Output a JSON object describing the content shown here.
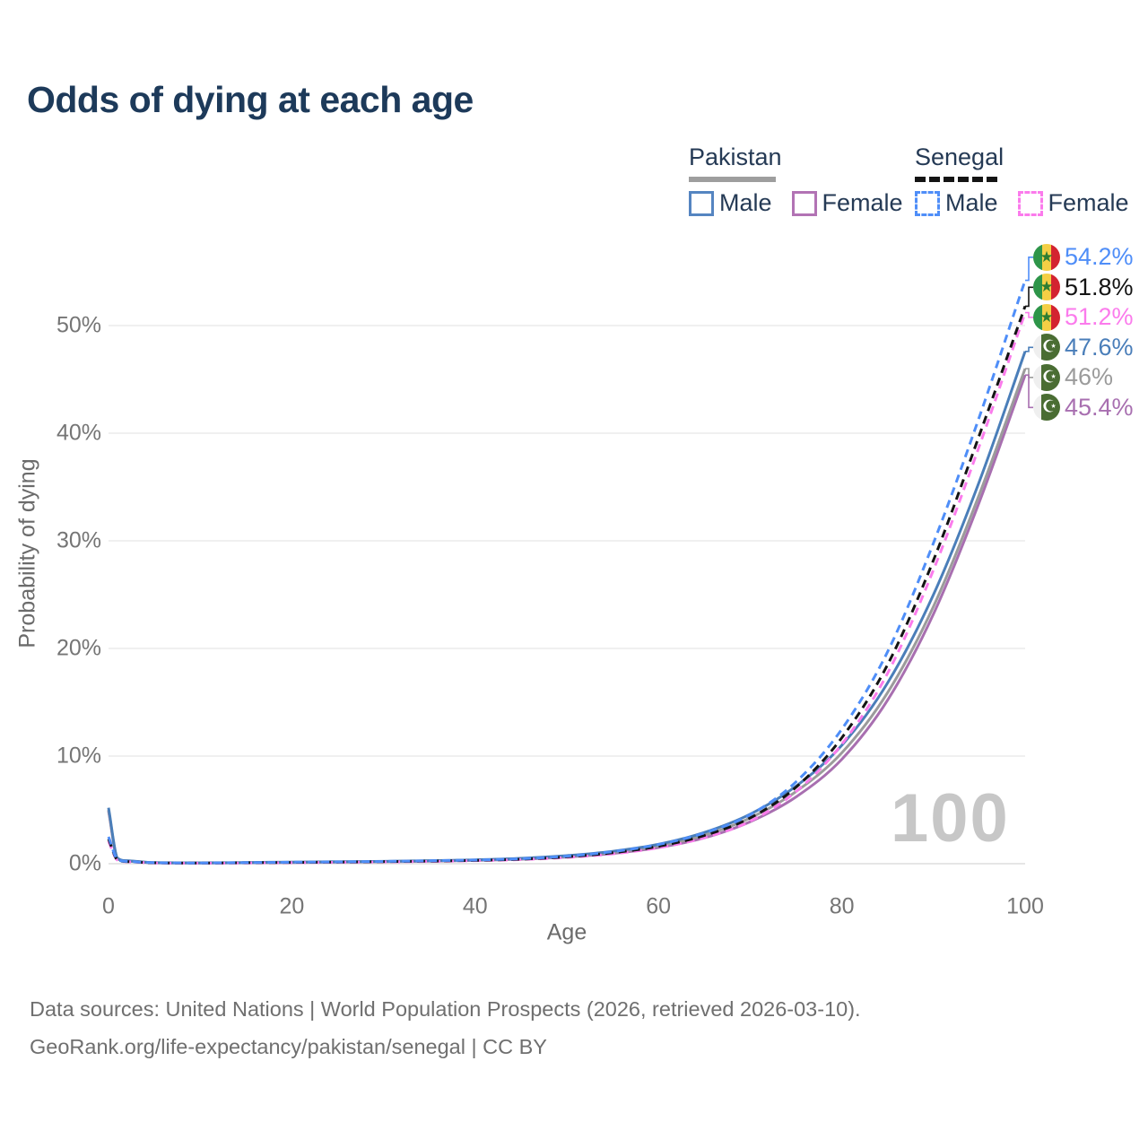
{
  "title": "Odds of dying at each age",
  "legend": {
    "groups": [
      {
        "label": "Pakistan",
        "line_style": "solid",
        "line_color": "#9e9e9e",
        "items": [
          {
            "label": "Male",
            "box_color": "#5585c1",
            "box_style": "solid"
          },
          {
            "label": "Female",
            "box_color": "#b273b4",
            "box_style": "solid"
          }
        ]
      },
      {
        "label": "Senegal",
        "line_style": "dashed",
        "line_color": "#141414",
        "items": [
          {
            "label": "Male",
            "box_color": "#4f8ef8",
            "box_style": "dashed"
          },
          {
            "label": "Female",
            "box_color": "#fb7bec",
            "box_style": "dashed"
          }
        ]
      }
    ]
  },
  "chart_data": {
    "type": "line",
    "title": "Odds of dying at each age",
    "xlabel": "Age",
    "ylabel": "Probability of dying",
    "units": "percent",
    "xlim": [
      0,
      100
    ],
    "ylim": [
      0,
      56
    ],
    "grid": true,
    "legend_position": "top-right",
    "watermark": "100",
    "x_ticks": [
      0,
      20,
      40,
      60,
      80,
      100
    ],
    "y_ticks": [
      {
        "value": 0,
        "label": "0%"
      },
      {
        "value": 10,
        "label": "10%"
      },
      {
        "value": 20,
        "label": "20%"
      },
      {
        "value": 30,
        "label": "30%"
      },
      {
        "value": 40,
        "label": "40%"
      },
      {
        "value": 50,
        "label": "50%"
      }
    ],
    "x": [
      0,
      1,
      2,
      5,
      10,
      15,
      20,
      25,
      30,
      35,
      40,
      45,
      50,
      55,
      60,
      65,
      70,
      75,
      80,
      85,
      90,
      95,
      100
    ],
    "series": [
      {
        "id": "pakistan-female",
        "name": "Pakistan Female",
        "style": "solid",
        "color": "#a86fb0",
        "flag": "pakistan",
        "end_label": "45.4%",
        "values": [
          4.9,
          0.43,
          0.24,
          0.08,
          0.06,
          0.08,
          0.11,
          0.14,
          0.18,
          0.23,
          0.3,
          0.42,
          0.62,
          0.95,
          1.5,
          2.4,
          3.9,
          6.2,
          9.7,
          15.2,
          23.2,
          33.6,
          45.4
        ]
      },
      {
        "id": "pakistan-all",
        "name": "Pakistan",
        "style": "solid",
        "color": "#9b9b9b",
        "flag": "pakistan",
        "end_label": "46%",
        "values": [
          5.0,
          0.46,
          0.26,
          0.09,
          0.07,
          0.09,
          0.13,
          0.16,
          0.2,
          0.26,
          0.33,
          0.46,
          0.68,
          1.05,
          1.65,
          2.65,
          4.25,
          6.7,
          10.3,
          15.9,
          23.9,
          34.3,
          46.0
        ]
      },
      {
        "id": "pakistan-male",
        "name": "Pakistan Male",
        "style": "solid",
        "color": "#4a7eb9",
        "flag": "pakistan",
        "end_label": "47.6%",
        "values": [
          5.2,
          0.5,
          0.28,
          0.1,
          0.08,
          0.11,
          0.15,
          0.18,
          0.22,
          0.28,
          0.36,
          0.5,
          0.75,
          1.15,
          1.8,
          2.9,
          4.6,
          7.2,
          11.0,
          16.8,
          25.0,
          35.5,
          47.6
        ]
      },
      {
        "id": "senegal-female",
        "name": "Senegal Female",
        "style": "dashed",
        "color": "#fb7bec",
        "flag": "senegal",
        "end_label": "51.2%",
        "values": [
          2.1,
          0.31,
          0.18,
          0.07,
          0.05,
          0.07,
          0.1,
          0.13,
          0.17,
          0.21,
          0.28,
          0.38,
          0.58,
          0.92,
          1.48,
          2.42,
          3.95,
          6.7,
          11.1,
          17.7,
          27.3,
          38.8,
          51.2
        ]
      },
      {
        "id": "senegal-all",
        "name": "Senegal",
        "style": "dashed",
        "color": "#141414",
        "flag": "senegal",
        "end_label": "51.8%",
        "values": [
          2.3,
          0.34,
          0.2,
          0.08,
          0.06,
          0.09,
          0.12,
          0.15,
          0.19,
          0.24,
          0.31,
          0.42,
          0.64,
          1.02,
          1.62,
          2.62,
          4.25,
          7.1,
          11.7,
          18.5,
          28.2,
          39.8,
          51.8
        ]
      },
      {
        "id": "senegal-male",
        "name": "Senegal Male",
        "style": "dashed",
        "color": "#4f8ef8",
        "flag": "senegal",
        "end_label": "54.2%",
        "values": [
          2.5,
          0.38,
          0.22,
          0.09,
          0.07,
          0.1,
          0.14,
          0.17,
          0.21,
          0.27,
          0.34,
          0.46,
          0.7,
          1.12,
          1.78,
          2.85,
          4.55,
          7.6,
          12.5,
          19.7,
          29.8,
          41.5,
          54.2
        ]
      }
    ]
  },
  "footer": {
    "line1": "Data sources: United Nations | World Population Prospects (2026, retrieved 2026-03-10).",
    "line2": "GeoRank.org/life-expectancy/pakistan/senegal | CC BY"
  },
  "icons": {
    "senegal_star": "★",
    "pakistan_crescent": "☪"
  }
}
